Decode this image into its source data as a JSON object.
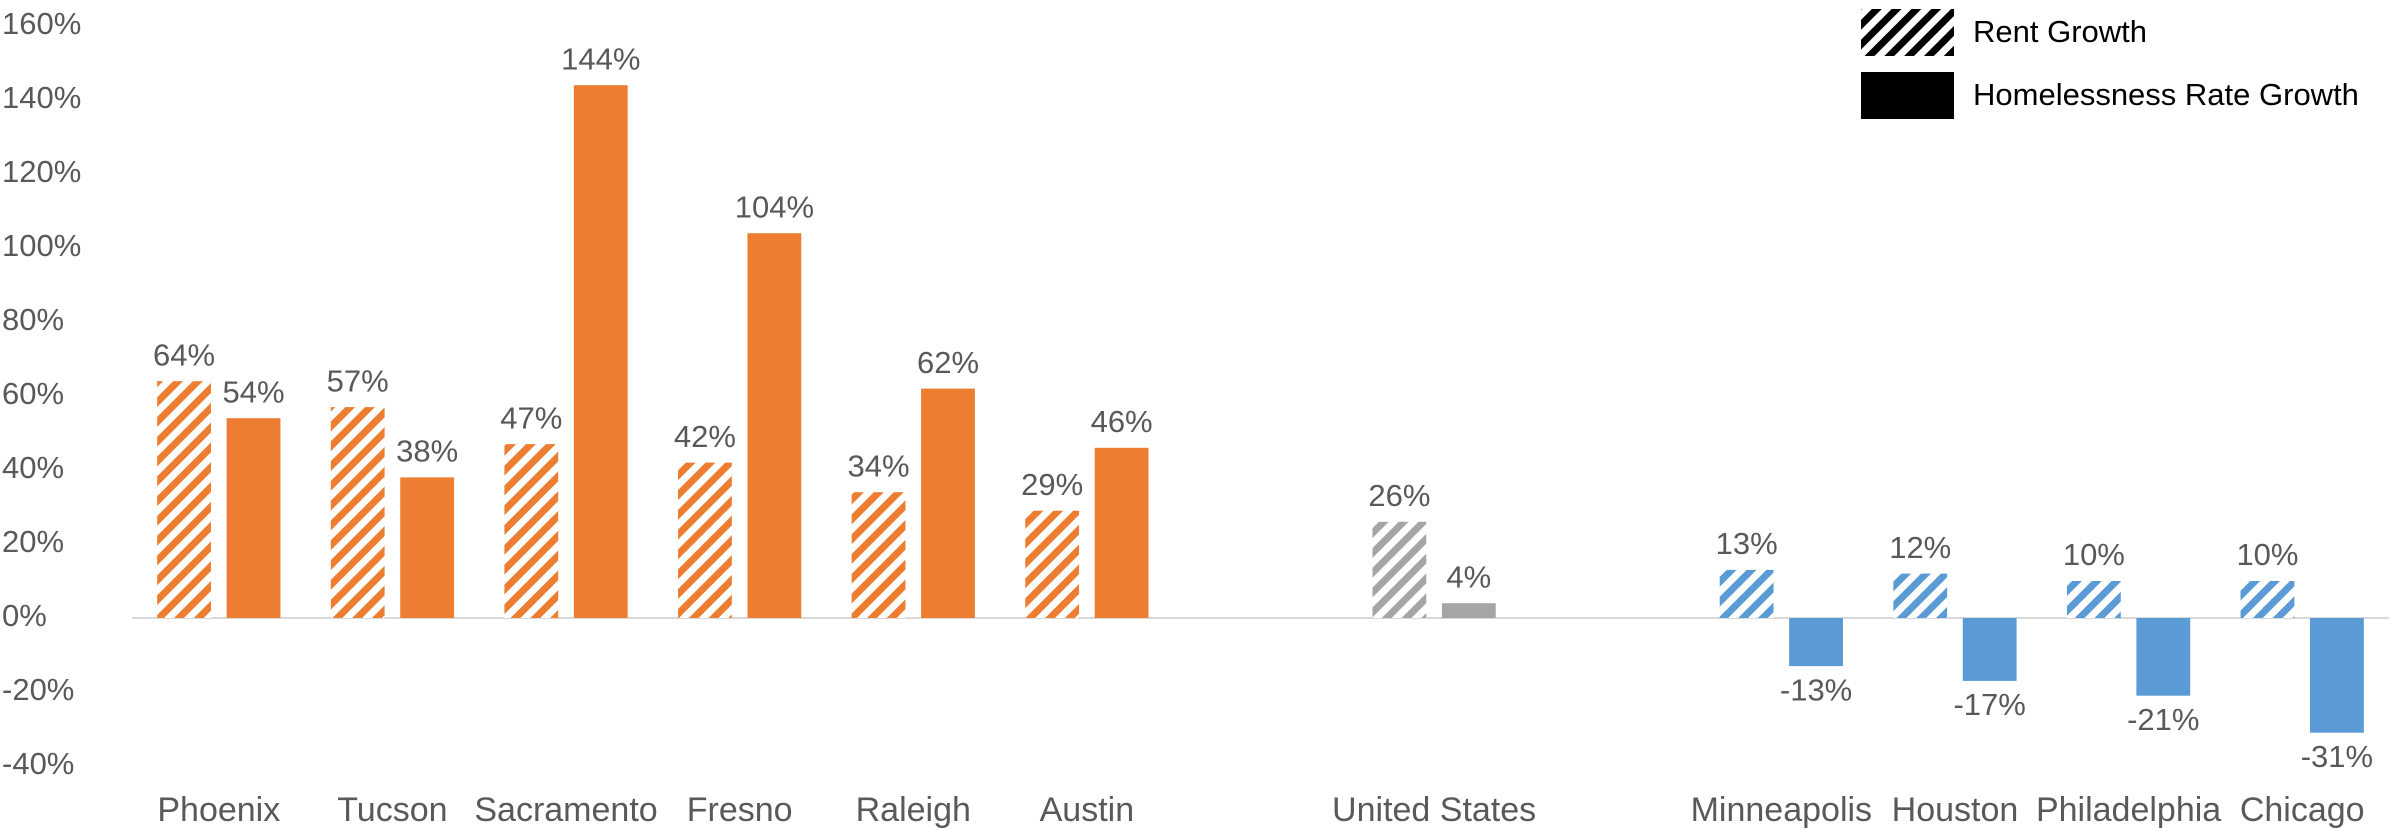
{
  "chart_data": {
    "type": "bar",
    "categories": [
      "Phoenix",
      "Tucson",
      "Sacramento",
      "Fresno",
      "Raleigh",
      "Austin",
      null,
      "United States",
      null,
      "Minneapolis",
      "Houston",
      "Philadelphia",
      "Chicago"
    ],
    "category_colors": [
      "#ed7d31",
      "#ed7d31",
      "#ed7d31",
      "#ed7d31",
      "#ed7d31",
      "#ed7d31",
      null,
      "#a5a5a5",
      null,
      "#5b9bd5",
      "#5b9bd5",
      "#5b9bd5",
      "#5b9bd5"
    ],
    "series": [
      {
        "name": "Rent Growth",
        "color": "#000000",
        "hatched": true,
        "values": [
          64,
          57,
          47,
          42,
          34,
          29,
          null,
          26,
          null,
          13,
          12,
          10,
          10
        ],
        "value_labels": [
          "64%",
          "57%",
          "47%",
          "42%",
          "34%",
          "29%",
          null,
          "26%",
          null,
          "13%",
          "12%",
          "10%",
          "10%"
        ]
      },
      {
        "name": "Homelessness Rate Growth",
        "color": "#000000",
        "hatched": false,
        "values": [
          54,
          38,
          144,
          104,
          62,
          46,
          null,
          4,
          null,
          -13,
          -17,
          -21,
          -31
        ],
        "value_labels": [
          "54%",
          "38%",
          "144%",
          "104%",
          "62%",
          "46%",
          null,
          "4%",
          null,
          "-13%",
          "-17%",
          "-21%",
          "-31%"
        ]
      }
    ],
    "ylim": [
      -40,
      160
    ],
    "yticks": [
      {
        "value": -40,
        "label": "-40%"
      },
      {
        "value": -20,
        "label": "-20%"
      },
      {
        "value": 0,
        "label": "0%"
      },
      {
        "value": 20,
        "label": "20%"
      },
      {
        "value": 40,
        "label": "40%"
      },
      {
        "value": 60,
        "label": "60%"
      },
      {
        "value": 80,
        "label": "80%"
      },
      {
        "value": 100,
        "label": "100%"
      },
      {
        "value": 120,
        "label": "120%"
      },
      {
        "value": 140,
        "label": "140%"
      },
      {
        "value": 160,
        "label": "160%"
      }
    ],
    "grid": false,
    "legend": "top-right"
  }
}
